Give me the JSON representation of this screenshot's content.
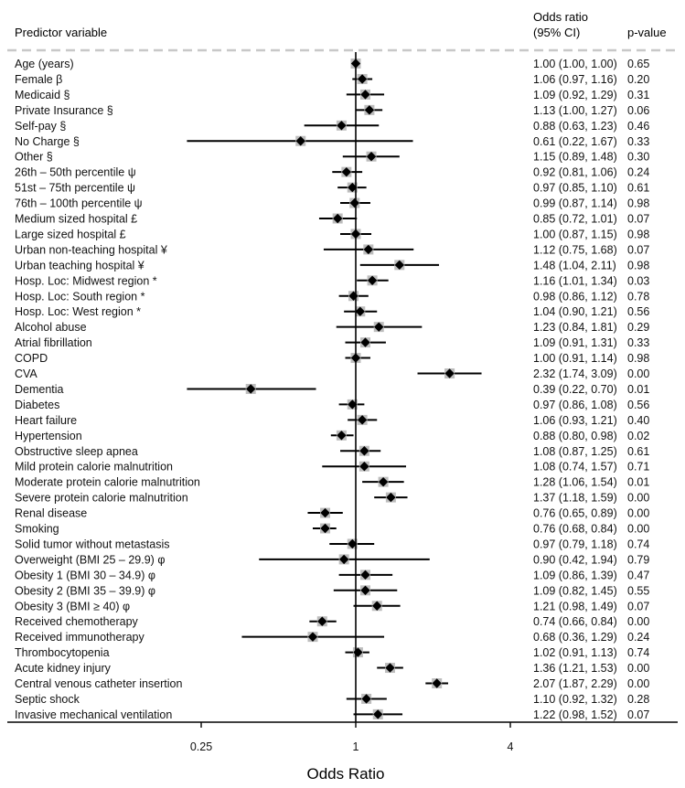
{
  "chart_data": {
    "type": "forest",
    "xscale": "log2",
    "xlabel": "Odds Ratio",
    "xticks": [
      "0.25",
      "1",
      "4"
    ],
    "xtick_values": [
      0.25,
      1,
      4
    ],
    "reference_line": 1,
    "headers": {
      "predictor": "Predictor variable",
      "or_line1": "Odds ratio",
      "or_line2": "(95% CI)",
      "p": "p-value"
    },
    "rows": [
      {
        "label": "Age (years)",
        "or": 1.0,
        "lo": 1.0,
        "hi": 1.0,
        "ci": "1.00 (1.00, 1.00)",
        "p": "0.65"
      },
      {
        "label": "Female β",
        "or": 1.06,
        "lo": 0.97,
        "hi": 1.16,
        "ci": "1.06 (0.97, 1.16)",
        "p": "0.20"
      },
      {
        "label": "Medicaid §",
        "or": 1.09,
        "lo": 0.92,
        "hi": 1.29,
        "ci": "1.09 (0.92, 1.29)",
        "p": "0.31"
      },
      {
        "label": "Private Insurance §",
        "or": 1.13,
        "lo": 1.0,
        "hi": 1.27,
        "ci": "1.13 (1.00, 1.27)",
        "p": "0.06"
      },
      {
        "label": "Self-pay §",
        "or": 0.88,
        "lo": 0.63,
        "hi": 1.23,
        "ci": "0.88 (0.63, 1.23)",
        "p": "0.46"
      },
      {
        "label": "No Charge  §",
        "or": 0.61,
        "lo": 0.22,
        "hi": 1.67,
        "ci": "0.61 (0.22, 1.67)",
        "p": "0.33"
      },
      {
        "label": "Other §",
        "or": 1.15,
        "lo": 0.89,
        "hi": 1.48,
        "ci": "1.15 (0.89, 1.48)",
        "p": "0.30"
      },
      {
        "label": "26th – 50th percentile ψ",
        "or": 0.92,
        "lo": 0.81,
        "hi": 1.06,
        "ci": "0.92 (0.81, 1.06)",
        "p": "0.24"
      },
      {
        "label": "51st – 75th percentile ψ",
        "or": 0.97,
        "lo": 0.85,
        "hi": 1.1,
        "ci": "0.97 (0.85, 1.10)",
        "p": "0.61"
      },
      {
        "label": "76th – 100th percentile ψ",
        "or": 0.99,
        "lo": 0.87,
        "hi": 1.14,
        "ci": "0.99 (0.87, 1.14)",
        "p": "0.98"
      },
      {
        "label": "Medium sized hospital £",
        "or": 0.85,
        "lo": 0.72,
        "hi": 1.01,
        "ci": "0.85 (0.72, 1.01)",
        "p": "0.07"
      },
      {
        "label": "Large sized hospital £",
        "or": 1.0,
        "lo": 0.87,
        "hi": 1.15,
        "ci": "1.00 (0.87, 1.15)",
        "p": "0.98"
      },
      {
        "label": "Urban non-teaching hospital ¥",
        "or": 1.12,
        "lo": 0.75,
        "hi": 1.68,
        "ci": "1.12 (0.75, 1.68)",
        "p": "0.07"
      },
      {
        "label": "Urban teaching hospital ¥",
        "or": 1.48,
        "lo": 1.04,
        "hi": 2.11,
        "ci": "1.48 (1.04, 2.11)",
        "p": "0.98"
      },
      {
        "label": "Hosp. Loc: Midwest region *",
        "or": 1.16,
        "lo": 1.01,
        "hi": 1.34,
        "ci": "1.16 (1.01, 1.34)",
        "p": "0.03"
      },
      {
        "label": "Hosp. Loc: South region *",
        "or": 0.98,
        "lo": 0.86,
        "hi": 1.12,
        "ci": "0.98 (0.86, 1.12)",
        "p": "0.78"
      },
      {
        "label": "Hosp. Loc: West region *",
        "or": 1.04,
        "lo": 0.9,
        "hi": 1.21,
        "ci": "1.04 (0.90, 1.21)",
        "p": "0.56"
      },
      {
        "label": "Alcohol abuse",
        "or": 1.23,
        "lo": 0.84,
        "hi": 1.81,
        "ci": "1.23 (0.84, 1.81)",
        "p": "0.29"
      },
      {
        "label": "Atrial fibrillation",
        "or": 1.09,
        "lo": 0.91,
        "hi": 1.31,
        "ci": "1.09 (0.91, 1.31)",
        "p": "0.33"
      },
      {
        "label": "COPD",
        "or": 1.0,
        "lo": 0.91,
        "hi": 1.14,
        "ci": "1.00 (0.91, 1.14)",
        "p": "0.98"
      },
      {
        "label": "CVA",
        "or": 2.32,
        "lo": 1.74,
        "hi": 3.09,
        "ci": "2.32 (1.74, 3.09)",
        "p": "0.00"
      },
      {
        "label": "Dementia",
        "or": 0.39,
        "lo": 0.22,
        "hi": 0.7,
        "ci": "0.39 (0.22, 0.70)",
        "p": "0.01"
      },
      {
        "label": "Diabetes",
        "or": 0.97,
        "lo": 0.86,
        "hi": 1.08,
        "ci": "0.97 (0.86, 1.08)",
        "p": "0.56"
      },
      {
        "label": "Heart failure",
        "or": 1.06,
        "lo": 0.93,
        "hi": 1.21,
        "ci": "1.06 (0.93, 1.21)",
        "p": "0.40"
      },
      {
        "label": "Hypertension",
        "or": 0.88,
        "lo": 0.8,
        "hi": 0.98,
        "ci": "0.88 (0.80, 0.98)",
        "p": "0.02"
      },
      {
        "label": "Obstructive sleep apnea",
        "or": 1.08,
        "lo": 0.87,
        "hi": 1.25,
        "ci": "1.08 (0.87, 1.25)",
        "p": "0.61"
      },
      {
        "label": "Mild protein calorie malnutrition",
        "or": 1.08,
        "lo": 0.74,
        "hi": 1.57,
        "ci": "1.08 (0.74, 1.57)",
        "p": "0.71"
      },
      {
        "label": "Moderate protein calorie malnutrition",
        "or": 1.28,
        "lo": 1.06,
        "hi": 1.54,
        "ci": "1.28 (1.06, 1.54)",
        "p": "0.01"
      },
      {
        "label": "Severe protein calorie malnutrition",
        "or": 1.37,
        "lo": 1.18,
        "hi": 1.59,
        "ci": "1.37 (1.18, 1.59)",
        "p": "0.00"
      },
      {
        "label": "Renal disease",
        "or": 0.76,
        "lo": 0.65,
        "hi": 0.89,
        "ci": "0.76 (0.65, 0.89)",
        "p": "0.00"
      },
      {
        "label": "Smoking",
        "or": 0.76,
        "lo": 0.68,
        "hi": 0.84,
        "ci": "0.76 (0.68, 0.84)",
        "p": "0.00"
      },
      {
        "label": "Solid tumor without metastasis",
        "or": 0.97,
        "lo": 0.79,
        "hi": 1.18,
        "ci": "0.97 (0.79, 1.18)",
        "p": "0.74"
      },
      {
        "label": "Overweight (BMI 25 – 29.9) φ",
        "or": 0.9,
        "lo": 0.42,
        "hi": 1.94,
        "ci": "0.90 (0.42, 1.94)",
        "p": "0.79"
      },
      {
        "label": "Obesity 1 (BMI 30 – 34.9) φ",
        "or": 1.09,
        "lo": 0.86,
        "hi": 1.39,
        "ci": "1.09 (0.86, 1.39)",
        "p": "0.47"
      },
      {
        "label": "Obesity 2 (BMI 35 – 39.9) φ",
        "or": 1.09,
        "lo": 0.82,
        "hi": 1.45,
        "ci": "1.09 (0.82, 1.45)",
        "p": "0.55"
      },
      {
        "label": "Obesity 3 (BMI ≥ 40) φ",
        "or": 1.21,
        "lo": 0.98,
        "hi": 1.49,
        "ci": "1.21 (0.98, 1.49)",
        "p": "0.07"
      },
      {
        "label": "Received chemotherapy",
        "or": 0.74,
        "lo": 0.66,
        "hi": 0.84,
        "ci": "0.74 (0.66, 0.84)",
        "p": "0.00"
      },
      {
        "label": "Received immunotherapy",
        "or": 0.68,
        "lo": 0.36,
        "hi": 1.29,
        "ci": "0.68 (0.36, 1.29)",
        "p": "0.24"
      },
      {
        "label": "Thrombocytopenia",
        "or": 1.02,
        "lo": 0.91,
        "hi": 1.13,
        "ci": "1.02 (0.91, 1.13)",
        "p": "0.74"
      },
      {
        "label": "Acute kidney injury",
        "or": 1.36,
        "lo": 1.21,
        "hi": 1.53,
        "ci": "1.36 (1.21, 1.53)",
        "p": "0.00"
      },
      {
        "label": "Central venous catheter insertion",
        "or": 2.07,
        "lo": 1.87,
        "hi": 2.29,
        "ci": "2.07 (1.87, 2.29)",
        "p": "0.00"
      },
      {
        "label": "Septic shock",
        "or": 1.1,
        "lo": 0.92,
        "hi": 1.32,
        "ci": "1.10 (0.92, 1.32)",
        "p": "0.28"
      },
      {
        "label": "Invasive mechanical ventilation",
        "or": 1.22,
        "lo": 0.98,
        "hi": 1.52,
        "ci": "1.22 (0.98, 1.52)",
        "p": "0.07"
      }
    ],
    "colors": {
      "marker": "#000000",
      "marker_halo": "#bdbdbd",
      "ci_line": "#000000",
      "divider": "#c8c8c8",
      "text": "#111111"
    }
  }
}
